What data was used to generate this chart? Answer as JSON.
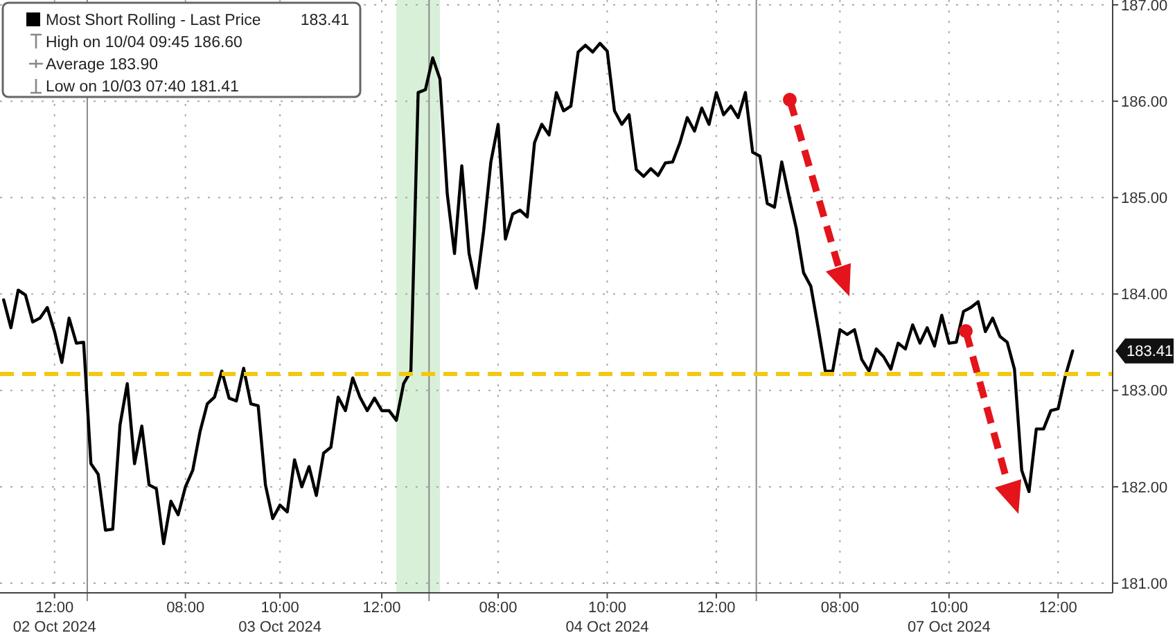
{
  "chart_data": {
    "type": "line",
    "legend": "top left",
    "grid": true,
    "categories": [
      null,
      null,
      null,
      null,
      null,
      null,
      null,
      "12:00\n02 Oct 2024",
      null,
      null,
      null,
      null,
      null,
      null,
      null,
      null,
      null,
      null,
      null,
      null,
      null,
      null,
      null,
      null,
      null,
      "08:00",
      null,
      null,
      null,
      null,
      null,
      null,
      null,
      null,
      null,
      null,
      null,
      null,
      "10:00\n03 Oct 2024",
      null,
      null,
      null,
      null,
      null,
      null,
      null,
      null,
      null,
      null,
      null,
      null,
      null,
      "12:00",
      null,
      null,
      null,
      null,
      null,
      null,
      null,
      null,
      null,
      null,
      null,
      null,
      null,
      null,
      null,
      "08:00",
      null,
      null,
      null,
      null,
      null,
      null,
      null,
      null,
      null,
      null,
      null,
      null,
      null,
      null,
      "10:00\n04 Oct 2024",
      null,
      null,
      null,
      null,
      null,
      null,
      null,
      null,
      null,
      null,
      null,
      null,
      null,
      null,
      "12:00",
      null,
      null,
      null,
      null,
      null,
      null,
      null,
      null,
      null,
      null,
      null,
      null,
      null,
      null,
      null,
      null,
      "08:00",
      null,
      null,
      null,
      null,
      null,
      null,
      null,
      null,
      null,
      null,
      null,
      null,
      null,
      null,
      "10:00\n07 Oct 2024",
      null,
      null,
      null,
      null,
      null,
      null,
      null,
      null,
      null,
      null,
      null,
      null,
      null,
      null,
      "12:00",
      null,
      null,
      null,
      null,
      null,
      null,
      null
    ],
    "series": [
      {
        "name": "Most Short Rolling - Last Price",
        "color": "#000000",
        "values": [
          183.94,
          183.65,
          184.04,
          183.99,
          183.71,
          183.75,
          183.86,
          183.61,
          183.29,
          183.75,
          183.49,
          183.5,
          182.24,
          182.13,
          181.55,
          181.56,
          182.64,
          183.07,
          182.24,
          182.63,
          182.02,
          181.98,
          181.41,
          181.85,
          181.71,
          182.0,
          182.17,
          182.57,
          182.86,
          182.93,
          183.2,
          182.92,
          182.89,
          183.23,
          182.86,
          182.84,
          182.02,
          181.67,
          181.81,
          181.74,
          182.28,
          182.0,
          182.21,
          181.91,
          182.35,
          182.41,
          182.93,
          182.79,
          183.13,
          182.93,
          182.79,
          182.92,
          182.79,
          182.79,
          182.69,
          183.07,
          183.2,
          186.09,
          186.12,
          186.45,
          186.23,
          185.04,
          184.42,
          185.33,
          184.42,
          184.06,
          184.65,
          185.37,
          185.76,
          184.57,
          184.83,
          184.87,
          184.8,
          185.57,
          185.76,
          185.65,
          186.09,
          185.9,
          185.95,
          186.51,
          186.58,
          186.51,
          186.6,
          186.52,
          185.9,
          185.76,
          185.86,
          185.29,
          185.22,
          185.3,
          185.23,
          185.36,
          185.37,
          185.57,
          185.83,
          185.69,
          185.93,
          185.76,
          186.09,
          185.86,
          185.95,
          185.83,
          186.09,
          185.47,
          185.43,
          184.94,
          184.9,
          185.37,
          185.01,
          184.68,
          184.22,
          184.08,
          183.65,
          183.2,
          183.2,
          183.63,
          183.58,
          183.63,
          183.32,
          183.2,
          183.43,
          183.35,
          183.22,
          183.49,
          183.43,
          183.68,
          183.49,
          183.65,
          183.46,
          183.78,
          183.49,
          183.5,
          183.82,
          183.86,
          183.92,
          183.61,
          183.75,
          183.56,
          183.5,
          183.22,
          182.17,
          181.95,
          182.6,
          182.6,
          182.79,
          182.81,
          183.15,
          183.41,
          null,
          null,
          null,
          null,
          null
        ]
      }
    ],
    "ylim": [
      180.9,
      187.05
    ],
    "yticks": [
      {
        "value": 181,
        "label": "181.00"
      },
      {
        "value": 182,
        "label": "182.00"
      },
      {
        "value": 183,
        "label": "183.00"
      },
      {
        "value": 184,
        "label": "184.00"
      },
      {
        "value": 185,
        "label": "185.00"
      },
      {
        "value": 186,
        "label": "186.00"
      },
      {
        "value": 187,
        "label": "187.00"
      }
    ],
    "ref_lines": [
      {
        "axis": "y",
        "value": 183.17,
        "color": "#f2c811",
        "line_style": "dashed"
      }
    ],
    "annotations": [
      "183.41",
      "High on 10/04 09:45 186.60",
      "Average 183.90",
      "Low on 10/03 07:40 181.41"
    ]
  }
}
